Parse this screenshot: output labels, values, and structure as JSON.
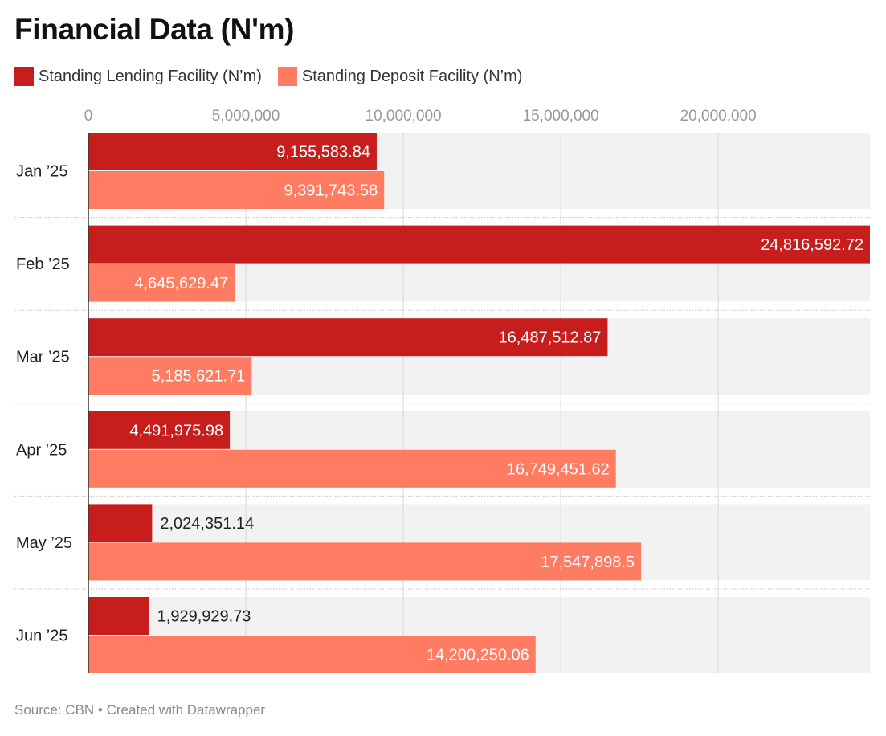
{
  "title": "Financial Data (N'm)",
  "footer": "Source: CBN • Created with Datawrapper",
  "colors": {
    "lending": "#c71e1d",
    "deposit": "#ff7b61",
    "band": "#f2f2f2",
    "grid": "#d6d6d6",
    "tick": "#999999"
  },
  "chart_data": {
    "type": "bar",
    "orientation": "horizontal",
    "title": "Financial Data (N'm)",
    "categories": [
      "Jan ’25",
      "Feb ’25",
      "Mar ’25",
      "Apr ’25",
      "May ’25",
      "Jun ’25"
    ],
    "series": [
      {
        "name": "Standing Lending Facility (N’m)",
        "values": [
          9155583.84,
          24816592.72,
          16487512.87,
          4491975.98,
          2024351.14,
          1929929.73
        ],
        "labels": [
          "9,155,583.84",
          "24,816,592.72",
          "16,487,512.87",
          "4,491,975.98",
          "2,024,351.14",
          "1,929,929.73"
        ]
      },
      {
        "name": "Standing Deposit Facility (N’m)",
        "values": [
          9391743.58,
          4645629.47,
          5185621.71,
          16749451.62,
          17547898.5,
          14200250.06
        ],
        "labels": [
          "9,391,743.58",
          "4,645,629.47",
          "5,185,621.71",
          "16,749,451.62",
          "17,547,898.5",
          "14,200,250.06"
        ]
      }
    ],
    "x_ticks": [
      0,
      5000000,
      10000000,
      15000000,
      20000000
    ],
    "x_tick_labels": [
      "0",
      "5,000,000",
      "10,000,000",
      "15,000,000",
      "20,000,000"
    ],
    "xlim": [
      0,
      24816592.72
    ],
    "grid": true,
    "legend_position": "top-left"
  }
}
